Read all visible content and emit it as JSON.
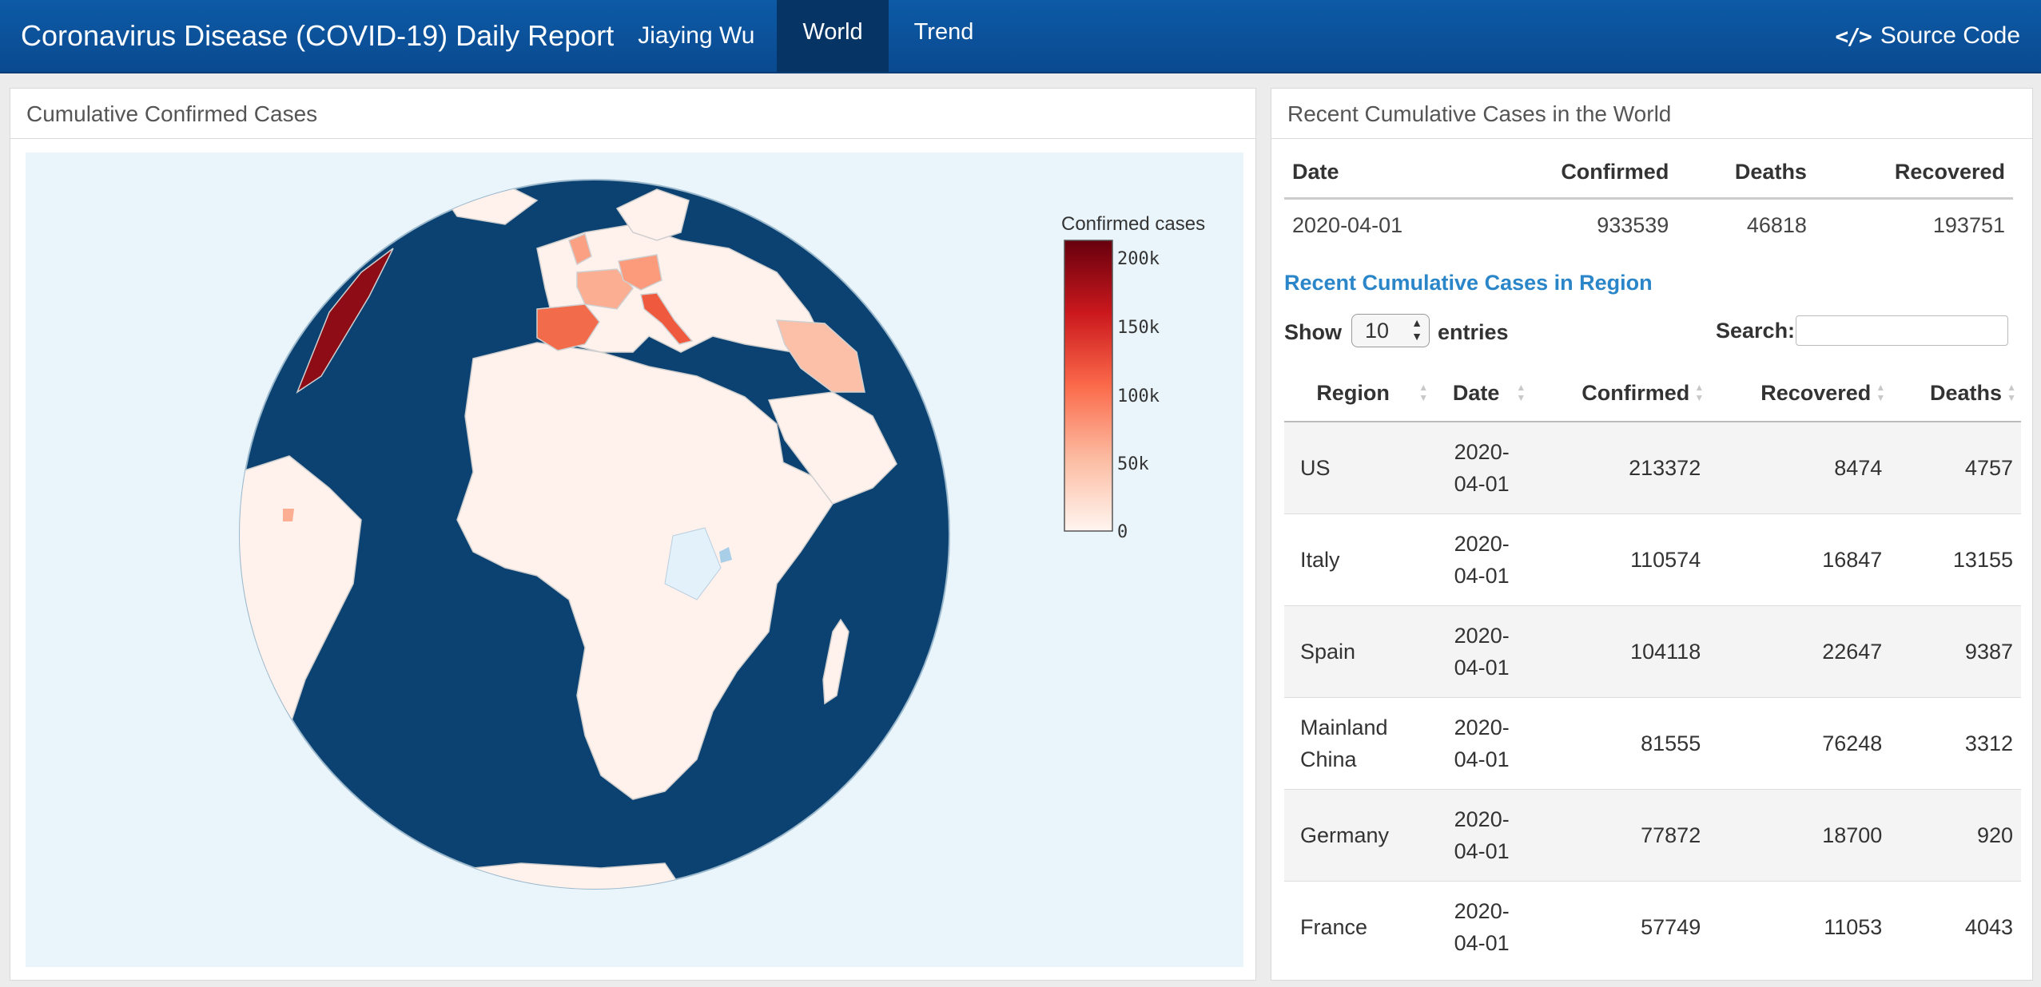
{
  "navbar": {
    "title": "Coronavirus Disease (COVID-19) Daily Report",
    "author": "Jiaying Wu",
    "tabs": [
      {
        "label": "World",
        "active": true
      },
      {
        "label": "Trend",
        "active": false
      }
    ],
    "source_label": "Source Code",
    "source_icon": "code-icon",
    "background_color": "#0b4f98",
    "active_tab_color": "#063464"
  },
  "map_panel": {
    "title": "Cumulative Confirmed Cases",
    "legend_title": "Confirmed cases",
    "legend_ticks": [
      "200k",
      "150k",
      "100k",
      "50k",
      "0"
    ],
    "ocean_color": "#0c4271",
    "background_color": "#e9f5fb"
  },
  "world_panel": {
    "title": "Recent Cumulative Cases in the World",
    "headers": [
      "Date",
      "Confirmed",
      "Deaths",
      "Recovered"
    ],
    "row": [
      "2020-04-01",
      "933539",
      "46818",
      "193751"
    ]
  },
  "region": {
    "heading": "Recent Cumulative Cases in Region",
    "show_label": "Show",
    "entries_value": "10",
    "entries_label": "entries",
    "search_label": "Search:",
    "search_value": "",
    "headers": [
      "Region",
      "Date",
      "Confirmed",
      "Recovered",
      "Deaths"
    ],
    "rows": [
      {
        "region": "US",
        "date_a": "2020-",
        "date_b": "04-01",
        "confirmed": "213372",
        "recovered": "8474",
        "deaths": "4757"
      },
      {
        "region": "Italy",
        "date_a": "2020-",
        "date_b": "04-01",
        "confirmed": "110574",
        "recovered": "16847",
        "deaths": "13155"
      },
      {
        "region": "Spain",
        "date_a": "2020-",
        "date_b": "04-01",
        "confirmed": "104118",
        "recovered": "22647",
        "deaths": "9387"
      },
      {
        "region": "Mainland China",
        "date_a": "2020-",
        "date_b": "04-01",
        "confirmed": "81555",
        "recovered": "76248",
        "deaths": "3312"
      },
      {
        "region": "Germany",
        "date_a": "2020-",
        "date_b": "04-01",
        "confirmed": "77872",
        "recovered": "18700",
        "deaths": "920"
      },
      {
        "region": "France",
        "date_a": "2020-",
        "date_b": "04-01",
        "confirmed": "57749",
        "recovered": "11053",
        "deaths": "4043"
      }
    ]
  }
}
